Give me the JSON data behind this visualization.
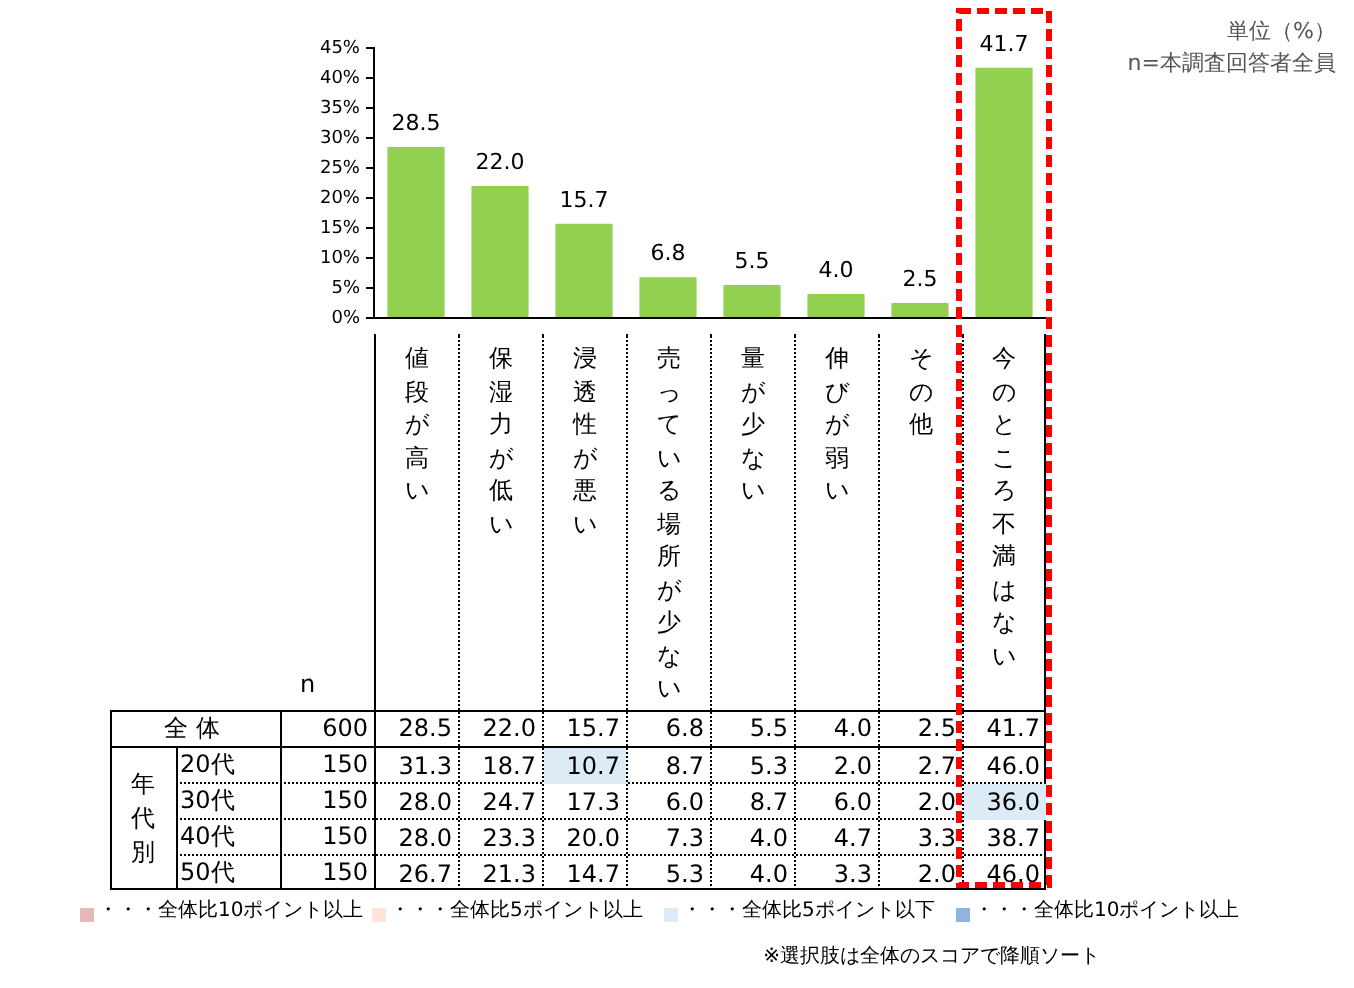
{
  "chart_data": {
    "type": "bar",
    "categories": [
      "値段が高い",
      "保湿力が低い",
      "浸透性が悪い",
      "売っている場所が少ない",
      "量が少ない",
      "伸びが弱い",
      "その他",
      "今のところ不満はない"
    ],
    "values": [
      28.5,
      22.0,
      15.7,
      6.8,
      5.5,
      4.0,
      2.5,
      41.7
    ],
    "value_labels": [
      "28.5",
      "22.0",
      "15.7",
      "6.8",
      "5.5",
      "4.0",
      "2.5",
      "41.7"
    ],
    "color": "#92d050",
    "ylim": [
      0,
      45
    ],
    "yticks": [
      {
        "value": 0,
        "label": "0%"
      },
      {
        "value": 5,
        "label": "5%"
      },
      {
        "value": 10,
        "label": "10%"
      },
      {
        "value": 15,
        "label": "15%"
      },
      {
        "value": 20,
        "label": "20%"
      },
      {
        "value": 25,
        "label": "25%"
      },
      {
        "value": 30,
        "label": "30%"
      },
      {
        "value": 35,
        "label": "35%"
      },
      {
        "value": 40,
        "label": "40%"
      },
      {
        "value": 45,
        "label": "45%"
      }
    ],
    "annotations": [
      "単位（%）",
      "n=本調査回答者全員",
      "※選択肢は全体のスコアで降順ソート",
      "・・・全体比10ポイント以上",
      "・・・全体比5ポイント以上",
      "・・・全体比5ポイント以下",
      "・・・全体比10ポイント以上",
      "n",
      "全 体",
      "600",
      "年代別",
      "20代",
      "150",
      "31.3",
      "18.7",
      "10.7",
      "8.7",
      "5.3",
      "2.0",
      "2.7",
      "46.0",
      "30代",
      "150",
      "28.0",
      "24.7",
      "17.3",
      "6.0",
      "8.7",
      "6.0",
      "2.0",
      "36.0",
      "40代",
      "150",
      "28.0",
      "23.3",
      "20.0",
      "7.3",
      "4.0",
      "4.7",
      "3.3",
      "38.7",
      "50代",
      "150",
      "26.7",
      "21.3",
      "14.7",
      "5.3",
      "4.0",
      "3.3",
      "2.0",
      "46.0"
    ]
  }
}
